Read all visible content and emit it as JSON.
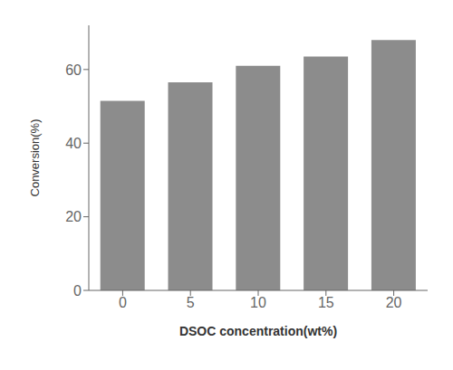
{
  "chart_data": {
    "type": "bar",
    "categories": [
      "0",
      "5",
      "10",
      "15",
      "20"
    ],
    "values": [
      51.5,
      56.5,
      61.0,
      63.5,
      68.0
    ],
    "color": "#8c8c8c",
    "xlabel": "DSOC concentration(wt%)",
    "ylabel": "Conversion(%)",
    "ylim": [
      0,
      72
    ],
    "yticks": [
      0,
      20,
      40,
      60
    ]
  }
}
